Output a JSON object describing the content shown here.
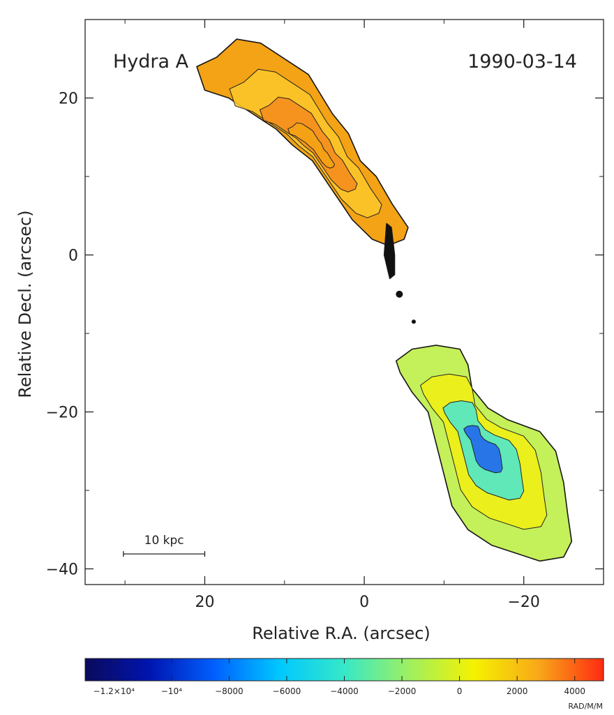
{
  "chart_data": {
    "type": "heatmap",
    "title_left": "Hydra A",
    "title_right": "1990-03-14",
    "xlabel": "Relative R.A. (arcsec)",
    "ylabel": "Relative Decl. (arcsec)",
    "xlim": [
      35,
      -30
    ],
    "ylim": [
      -42,
      30
    ],
    "x_ticks": [
      {
        "value": 20,
        "label": "20"
      },
      {
        "value": 0,
        "label": "0"
      },
      {
        "value": -20,
        "label": "−20"
      }
    ],
    "y_ticks": [
      {
        "value": 20,
        "label": "20"
      },
      {
        "value": 0,
        "label": "0"
      },
      {
        "value": -20,
        "label": "−20"
      },
      {
        "value": -40,
        "label": "−40"
      }
    ],
    "scalebar": {
      "label": "10 kpc",
      "from": 30.2,
      "to": 20.0,
      "y": -38.1
    },
    "colorbar": {
      "unit": "RAD/M/M",
      "range": [
        -13000,
        5000
      ],
      "ticks": [
        {
          "value": -12000,
          "label": "−1.2×10⁴"
        },
        {
          "value": -10000,
          "label": "−10⁴"
        },
        {
          "value": -8000,
          "label": "−8000"
        },
        {
          "value": -6000,
          "label": "−6000"
        },
        {
          "value": -4000,
          "label": "−4000"
        },
        {
          "value": -2000,
          "label": "−2000"
        },
        {
          "value": 0,
          "label": "0"
        },
        {
          "value": 2000,
          "label": "2000"
        },
        {
          "value": 4000,
          "label": "4000"
        }
      ],
      "colors": [
        "#0a0a5c",
        "#0015b0",
        "#0060ff",
        "#00c8ff",
        "#36e8c8",
        "#9ef060",
        "#f5f200",
        "#f8a818",
        "#ff2a12"
      ]
    },
    "regions": [
      {
        "name": "North lobe",
        "outline": [
          [
            18.5,
            25.2
          ],
          [
            16,
            27.5
          ],
          [
            13,
            27
          ],
          [
            10,
            25
          ],
          [
            7,
            23
          ],
          [
            4,
            18
          ],
          [
            2,
            15.5
          ],
          [
            0.5,
            12
          ],
          [
            -1.5,
            10
          ],
          [
            -3.5,
            6.5
          ],
          [
            -5.5,
            3.5
          ],
          [
            -5,
            2
          ],
          [
            -3,
            1.2
          ],
          [
            -1,
            2
          ],
          [
            0,
            3
          ],
          [
            1.5,
            4.5
          ],
          [
            2.5,
            6
          ],
          [
            4.5,
            9
          ],
          [
            6.5,
            12
          ],
          [
            9,
            14
          ],
          [
            11,
            16
          ],
          [
            14,
            18
          ],
          [
            17,
            20
          ],
          [
            20,
            21
          ],
          [
            21,
            24
          ]
        ],
        "fill": [
          "#f3a315",
          "#fcc82b",
          "#f48a1c"
        ],
        "value_range": [
          0,
          2500
        ]
      },
      {
        "name": "South lobe",
        "outline": [
          [
            -4.5,
            -15
          ],
          [
            -4,
            -13.5
          ],
          [
            -6,
            -12
          ],
          [
            -9,
            -11.5
          ],
          [
            -12,
            -12
          ],
          [
            -13,
            -14
          ],
          [
            -13.5,
            -17
          ],
          [
            -15.5,
            -19.5
          ],
          [
            -18,
            -21
          ],
          [
            -22,
            -22.5
          ],
          [
            -24,
            -25
          ],
          [
            -25,
            -29
          ],
          [
            -25.5,
            -33
          ],
          [
            -26,
            -36.5
          ],
          [
            -25,
            -38.5
          ],
          [
            -22,
            -39
          ],
          [
            -19,
            -38
          ],
          [
            -16,
            -37
          ],
          [
            -13,
            -35
          ],
          [
            -11,
            -32
          ],
          [
            -10,
            -28
          ],
          [
            -9,
            -24
          ],
          [
            -8,
            -20
          ],
          [
            -6,
            -17.5
          ]
        ],
        "fill": [
          "#c4f05a",
          "#f2ee12",
          "#48e6d4",
          "#1e60f0"
        ],
        "value_range": [
          -11000,
          -500
        ]
      },
      {
        "name": "Core jet",
        "outline": [
          [
            -2.8,
            4
          ],
          [
            -2.5,
            0
          ],
          [
            -3.2,
            -3
          ],
          [
            -3.8,
            -2.5
          ],
          [
            -3.8,
            0
          ],
          [
            -3.4,
            3.5
          ]
        ],
        "fill": [
          "#111111"
        ],
        "value_range": [
          0,
          0
        ]
      }
    ]
  }
}
